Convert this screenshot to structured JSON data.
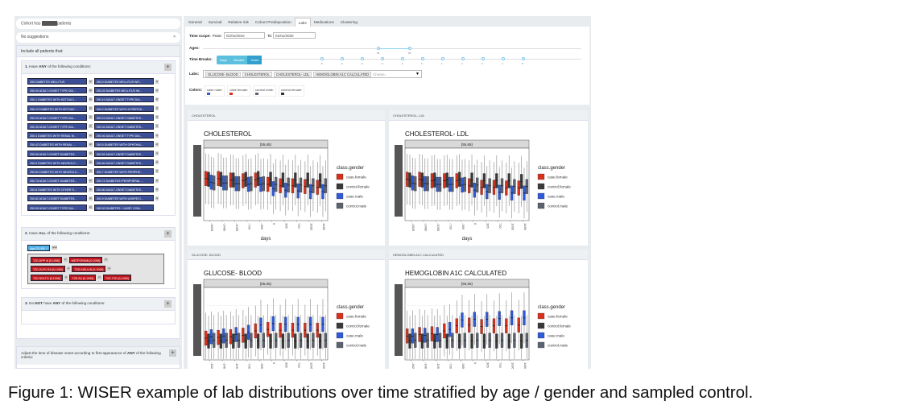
{
  "sidebar": {
    "cohort_prefix": "Cohort has",
    "cohort_suffix": "patients",
    "search_value": "No suggestions",
    "clear": "×",
    "include_label": "Include all patients that:",
    "group1": {
      "num": "1.",
      "pre": "Have",
      "kw": "ANY",
      "post": "of the following conditions:",
      "or": "or",
      "rows": [
        [
          "250 DIABETES MELLITUS",
          "250.0 DIABETES MELLITUS WIT..."
        ],
        [
          "250.00 ADULT-ONSET TYPE DIA...",
          "250.02 DIABETES MELLITUS WI..."
        ],
        [
          "250.1 DIABETES WITH KETOACI...",
          "250.10 ADULT-ONSET TYPE DIA..."
        ],
        [
          "250.12 DIABETES WITH KETOAC...",
          "250.2 DIABETES WITH HYPEROS..."
        ],
        [
          "250.20 ADULT-ONSET TYPE DIA...",
          "250.22 ADULT-ONSET DIABETES..."
        ],
        [
          "250.30 ADULT-ONSET TYPE DIA...",
          "250.32 ADULT-ONSET DIABETES..."
        ],
        [
          "250.4 DIABETES WITH RENAL M...",
          "250.40 ADULT-ONSET TYPE DIA..."
        ],
        [
          "250.42 DIABETES WITH RENAL ...",
          "250.5 DIABETES WITH OPHTHAL..."
        ],
        [
          "250.50 ADULT-ONSET DIABETES...",
          "250.52 ADULT-ONSET DIABETES..."
        ],
        [
          "250.6 DIABETES WITH NEUROLO...",
          "250.60 ADULT-ONSET DIABETES..."
        ],
        [
          "250.62 DIABETES WITH NEUROLO...",
          "250.7 DIABETES WITH PERIPHE..."
        ],
        [
          "250.70 ADULT-ONSET DIABETES...",
          "250.72 DIABETES+PERIPHERAL ..."
        ],
        [
          "250.8 DIABETES WITH OTHER S...",
          "250.80 ADULT-ONSET DIABETES..."
        ],
        [
          "250.82 ADULT-ONSET DIABETES...",
          "250.9 DIABETES WITH UNSPECI..."
        ],
        [
          "250.90 ADULT-ONSET TYPE DIA...",
          "250.92 DIABETES + UNSP. COM..."
        ]
      ]
    },
    "group2": {
      "num": "2.",
      "pre": "Have",
      "kw": "ALL",
      "post": "of the following conditions:",
      "age": "Age [20,99] ✓",
      "and": "and",
      "or": "or",
      "rows": [
        [
          "T2D.DPP 4i [0,1095]",
          "METFORMIN [0,1095]"
        ],
        [
          "T2D.GLP1 RA [0,1095]",
          "T2D.INSULIN [0,1095]"
        ],
        [
          "T2D.SGLT2i [0,1095]",
          "T2D.SU [0,1095]",
          "T2D.TZD [0,1095]"
        ]
      ]
    },
    "group3": {
      "num": "3.",
      "pre": "Do",
      "kw": "NOT",
      "mid": "have",
      "kw2": "ANY",
      "post": "of the following conditions:"
    },
    "adjust": {
      "pre": "Adjust the time of disease onset according to first appearance of",
      "kw": "ANY",
      "post": "of the following criteria:"
    },
    "plus": "+"
  },
  "tabs": [
    "General",
    "Survival",
    "Relative risk",
    "Cohort Predisposition",
    "Labs",
    "Medications",
    "Clustering"
  ],
  "active_tab": "Labs",
  "controls": {
    "time_scope": "Time scope:",
    "from": "From:",
    "from_value": "01/01/2010",
    "to": "To:",
    "to_value": "01/01/2020",
    "ages": "Ages:",
    "age_range": [
      "55",
      "65"
    ],
    "time_breaks": "Time Breaks:",
    "break_buttons": [
      "Days",
      "Months",
      "Years"
    ],
    "break_active": "Years",
    "break_ticks": [
      "-5",
      "-4",
      "-3",
      "-2",
      "-1",
      "0",
      "1",
      "2",
      "3",
      "4",
      "5"
    ],
    "labs": "Labs:",
    "lab_tags": [
      "GLUCOSE- BLOOD",
      "CHOLESTEROL",
      "CHOLESTEROL- LDL",
      "HEMOGLOBIN A1C CALCULATED"
    ],
    "lab_placeholder": "Choose...",
    "colors": "Colors:",
    "color_items": [
      {
        "label": "case male:",
        "color": "#2f5bd8"
      },
      {
        "label": "case female:",
        "color": "#d8301d"
      },
      {
        "label": "control male:",
        "color": "#5c6370"
      },
      {
        "label": "control female:",
        "color": "#333333"
      }
    ]
  },
  "chart_data": [
    {
      "type": "boxplot",
      "panel_label": "CHOLESTEROL",
      "title": "CHOLESTEROL",
      "facet": "[55,65)",
      "xlabel": "days",
      "categories": [
        "-1825",
        "-1460",
        "-1095",
        "-730",
        "-365",
        "0",
        "365",
        "730",
        "1095",
        "1460"
      ],
      "legend_title": "class.gender",
      "legend": "right",
      "series": [
        {
          "name": "case.female",
          "color": "#d8301d",
          "median": [
            0.58,
            0.58,
            0.56,
            0.55,
            0.56,
            0.5,
            0.48,
            0.48,
            0.47,
            0.46
          ]
        },
        {
          "name": "control.female",
          "color": "#3a3a3a",
          "median": [
            0.57,
            0.57,
            0.56,
            0.57,
            0.58,
            0.57,
            0.56,
            0.56,
            0.56,
            0.55
          ]
        },
        {
          "name": "case.male",
          "color": "#2f5bd8",
          "median": [
            0.53,
            0.52,
            0.51,
            0.5,
            0.5,
            0.44,
            0.42,
            0.41,
            0.4,
            0.4
          ]
        },
        {
          "name": "control.male",
          "color": "#5c6370",
          "median": [
            0.52,
            0.52,
            0.51,
            0.51,
            0.51,
            0.5,
            0.49,
            0.49,
            0.48,
            0.48
          ]
        }
      ]
    },
    {
      "type": "boxplot",
      "panel_label": "CHOLESTEROL- LDL",
      "title": "CHOLESTEROL- LDL",
      "facet": "[55,65)",
      "xlabel": "days",
      "categories": [
        "-1825",
        "-1460",
        "-1095",
        "-730",
        "-365",
        "0",
        "365",
        "730",
        "1095",
        "1460"
      ],
      "legend_title": "class.gender",
      "legend": "right",
      "series": [
        {
          "name": "case.female",
          "color": "#d8301d",
          "median": [
            0.57,
            0.57,
            0.55,
            0.55,
            0.55,
            0.48,
            0.46,
            0.46,
            0.45,
            0.45
          ]
        },
        {
          "name": "control.female",
          "color": "#3a3a3a",
          "median": [
            0.56,
            0.56,
            0.56,
            0.56,
            0.57,
            0.56,
            0.55,
            0.55,
            0.55,
            0.54
          ]
        },
        {
          "name": "case.male",
          "color": "#2f5bd8",
          "median": [
            0.52,
            0.51,
            0.5,
            0.5,
            0.49,
            0.42,
            0.4,
            0.39,
            0.38,
            0.38
          ]
        },
        {
          "name": "control.male",
          "color": "#5c6370",
          "median": [
            0.51,
            0.51,
            0.5,
            0.5,
            0.5,
            0.49,
            0.48,
            0.48,
            0.47,
            0.47
          ]
        }
      ]
    },
    {
      "type": "boxplot",
      "panel_label": "GLUCOSE- BLOOD",
      "title": "GLUCOSE- BLOOD",
      "facet": "[55,65)",
      "xlabel": "days",
      "categories": [
        "-1825",
        "-1460",
        "-1095",
        "-730",
        "-365",
        "0",
        "365",
        "730",
        "1095",
        "1460"
      ],
      "legend_title": "class.gender",
      "legend": "right",
      "series": [
        {
          "name": "case.female",
          "color": "#d8301d",
          "median": [
            0.3,
            0.31,
            0.32,
            0.34,
            0.4,
            0.42,
            0.41,
            0.41,
            0.41,
            0.41
          ]
        },
        {
          "name": "control.female",
          "color": "#3a3a3a",
          "median": [
            0.26,
            0.26,
            0.26,
            0.26,
            0.26,
            0.26,
            0.26,
            0.26,
            0.26,
            0.26
          ]
        },
        {
          "name": "case.male",
          "color": "#2f5bd8",
          "median": [
            0.32,
            0.33,
            0.35,
            0.38,
            0.48,
            0.5,
            0.49,
            0.49,
            0.49,
            0.49
          ]
        },
        {
          "name": "control.male",
          "color": "#5c6370",
          "median": [
            0.27,
            0.27,
            0.27,
            0.27,
            0.27,
            0.27,
            0.27,
            0.27,
            0.27,
            0.27
          ]
        }
      ]
    },
    {
      "type": "boxplot",
      "panel_label": "HEMOGLOBIN A1C CALCULATED",
      "title": "HEMOGLOBIN A1C CALCULATED",
      "facet": "[55,65)",
      "xlabel": "days",
      "categories": [
        "-1825",
        "-1460",
        "-1095",
        "-730",
        "-365",
        "0",
        "365",
        "730",
        "1095",
        "1460"
      ],
      "legend_title": "class.gender",
      "legend": "right",
      "series": [
        {
          "name": "case.female",
          "color": "#d8301d",
          "median": [
            0.33,
            0.35,
            0.36,
            0.4,
            0.47,
            0.48,
            0.46,
            0.47,
            0.47,
            0.48
          ]
        },
        {
          "name": "control.female",
          "color": "#3a3a3a",
          "median": [
            0.26,
            0.26,
            0.26,
            0.26,
            0.26,
            0.26,
            0.26,
            0.26,
            0.26,
            0.26
          ]
        },
        {
          "name": "case.male",
          "color": "#2f5bd8",
          "median": [
            0.33,
            0.34,
            0.35,
            0.42,
            0.55,
            0.56,
            0.56,
            0.57,
            0.58,
            0.58
          ]
        },
        {
          "name": "control.male",
          "color": "#5c6370",
          "median": [
            0.27,
            0.27,
            0.27,
            0.27,
            0.27,
            0.27,
            0.27,
            0.27,
            0.27,
            0.27
          ]
        }
      ]
    }
  ],
  "caption": "Figure 1: WISER example of lab distributions over time stratified by age / gender and sampled control."
}
